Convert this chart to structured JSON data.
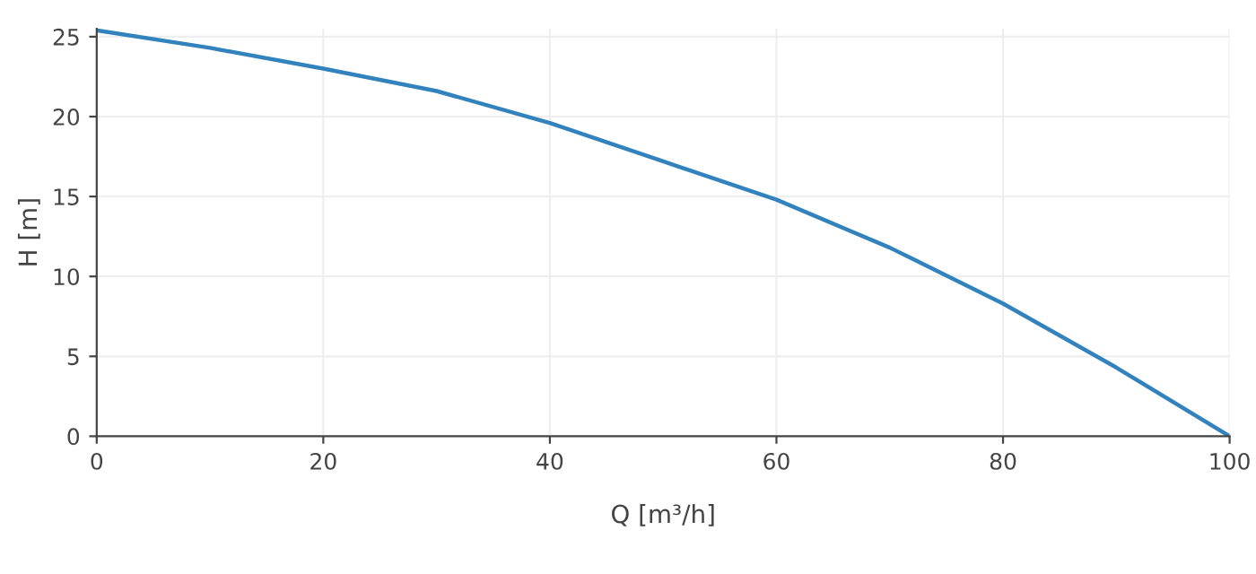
{
  "chart_data": {
    "type": "line",
    "x": [
      0,
      10,
      20,
      30,
      40,
      50,
      60,
      70,
      80,
      90,
      100
    ],
    "series": [
      {
        "color": "#3182bd",
        "values": [
          25.4,
          24.3,
          23.0,
          21.6,
          19.6,
          17.2,
          14.8,
          11.8,
          8.3,
          4.3,
          0
        ]
      }
    ],
    "xlabel": "Q [m³/h]",
    "ylabel": "H [m]",
    "xlim": [
      0,
      100
    ],
    "ylim": [
      0,
      25.5
    ],
    "xticks": [
      0,
      20,
      40,
      60,
      80,
      100
    ],
    "yticks": [
      0,
      5,
      10,
      15,
      20,
      25
    ],
    "grid": true,
    "marker": "none",
    "line_style": "solid"
  }
}
